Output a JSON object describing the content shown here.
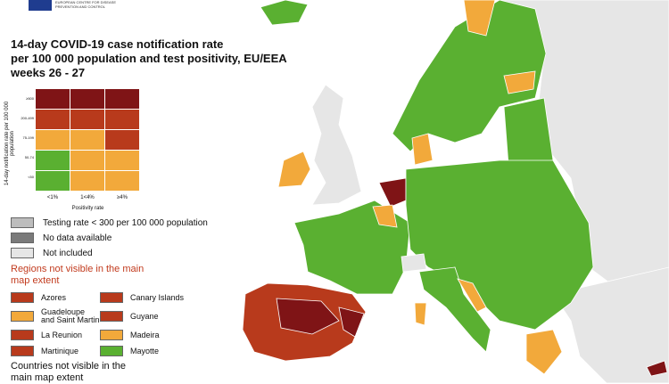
{
  "header": {
    "agency": "EUROPEAN CENTRE FOR DISEASE PREVENTION AND CONTROL"
  },
  "title": [
    "14-day COVID-19 case notification rate",
    "per 100 000 population and test positivity, EU/EEA",
    "weeks 26 - 27"
  ],
  "matrix": {
    "y_label": "14-day notification rate per 100 000 population",
    "rows": [
      "≥500",
      "200-499",
      "75-199",
      "50-74",
      "<50"
    ],
    "x_labels": [
      "<1%",
      "1<4%",
      "≥4%"
    ],
    "x_label": "Positivity rate",
    "colors": [
      [
        "#7f1416",
        "#7f1416",
        "#7f1416"
      ],
      [
        "#b83a1c",
        "#b83a1c",
        "#b83a1c"
      ],
      [
        "#f2a93b",
        "#f2a93b",
        "#b83a1c"
      ],
      [
        "#5ab031",
        "#f2a93b",
        "#f2a93b"
      ],
      [
        "#5ab031",
        "#f2a93b",
        "#f2a93b"
      ]
    ]
  },
  "legend": [
    {
      "label": "Testing rate < 300 per 100 000 population",
      "color": "#bdbdbd"
    },
    {
      "label": "No data available",
      "color": "#7a7a7a"
    },
    {
      "label": "Not included",
      "color": "#e6e6e6"
    }
  ],
  "regions": {
    "title": "Regions not visible in the main map extent",
    "items": [
      {
        "name": "Azores",
        "color": "#b83a1c"
      },
      {
        "name": "Canary Islands",
        "color": "#b83a1c"
      },
      {
        "name": "Guadeloupe and Saint Martin",
        "color": "#f2a93b"
      },
      {
        "name": "Guyane",
        "color": "#b83a1c"
      },
      {
        "name": "La Reunion",
        "color": "#b83a1c"
      },
      {
        "name": "Madeira",
        "color": "#f2a93b"
      },
      {
        "name": "Martinique",
        "color": "#b83a1c"
      },
      {
        "name": "Mayotte",
        "color": "#5ab031"
      }
    ]
  },
  "countries": {
    "title": "Countries not visible in the main map extent"
  }
}
